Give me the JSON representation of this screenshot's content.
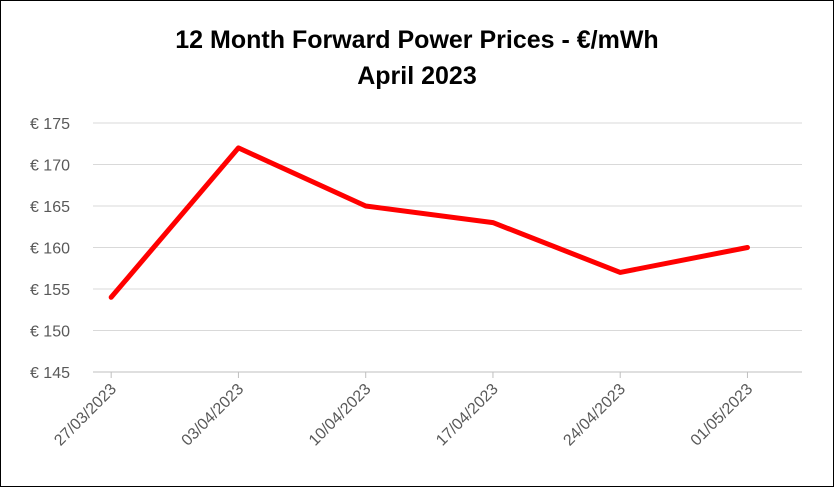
{
  "chart_data": {
    "type": "line",
    "title": "12 Month Forward Power Prices - €/mWh",
    "subtitle": "April 2023",
    "xlabel": "",
    "ylabel": "",
    "x": [
      "27/03/2023",
      "03/04/2023",
      "10/04/2023",
      "17/04/2023",
      "24/04/2023",
      "01/05/2023"
    ],
    "series": [
      {
        "points": [
          {
            "x": "27/03/2023",
            "y": 154
          },
          {
            "x": "03/04/2023",
            "y": 172
          },
          {
            "x": "10/04/2023",
            "y": 165
          },
          {
            "x": "17/04/2023",
            "y": 163
          },
          {
            "x": "24/04/2023",
            "y": 157
          },
          {
            "x": "01/05/2023",
            "y": 160
          }
        ],
        "color": "#ff0000"
      }
    ],
    "ylim": [
      145,
      175
    ],
    "yticks": [
      145,
      150,
      155,
      160,
      165,
      170,
      175
    ],
    "ytick_labels": [
      "€ 145",
      "€ 150",
      "€ 155",
      "€ 160",
      "€ 165",
      "€ 170",
      "€ 175"
    ],
    "grid": true,
    "legend": "none"
  },
  "colors": {
    "line": "#ff0000",
    "grid": "#d9d9d9",
    "tick_text": "#595959",
    "title_text": "#000000"
  }
}
